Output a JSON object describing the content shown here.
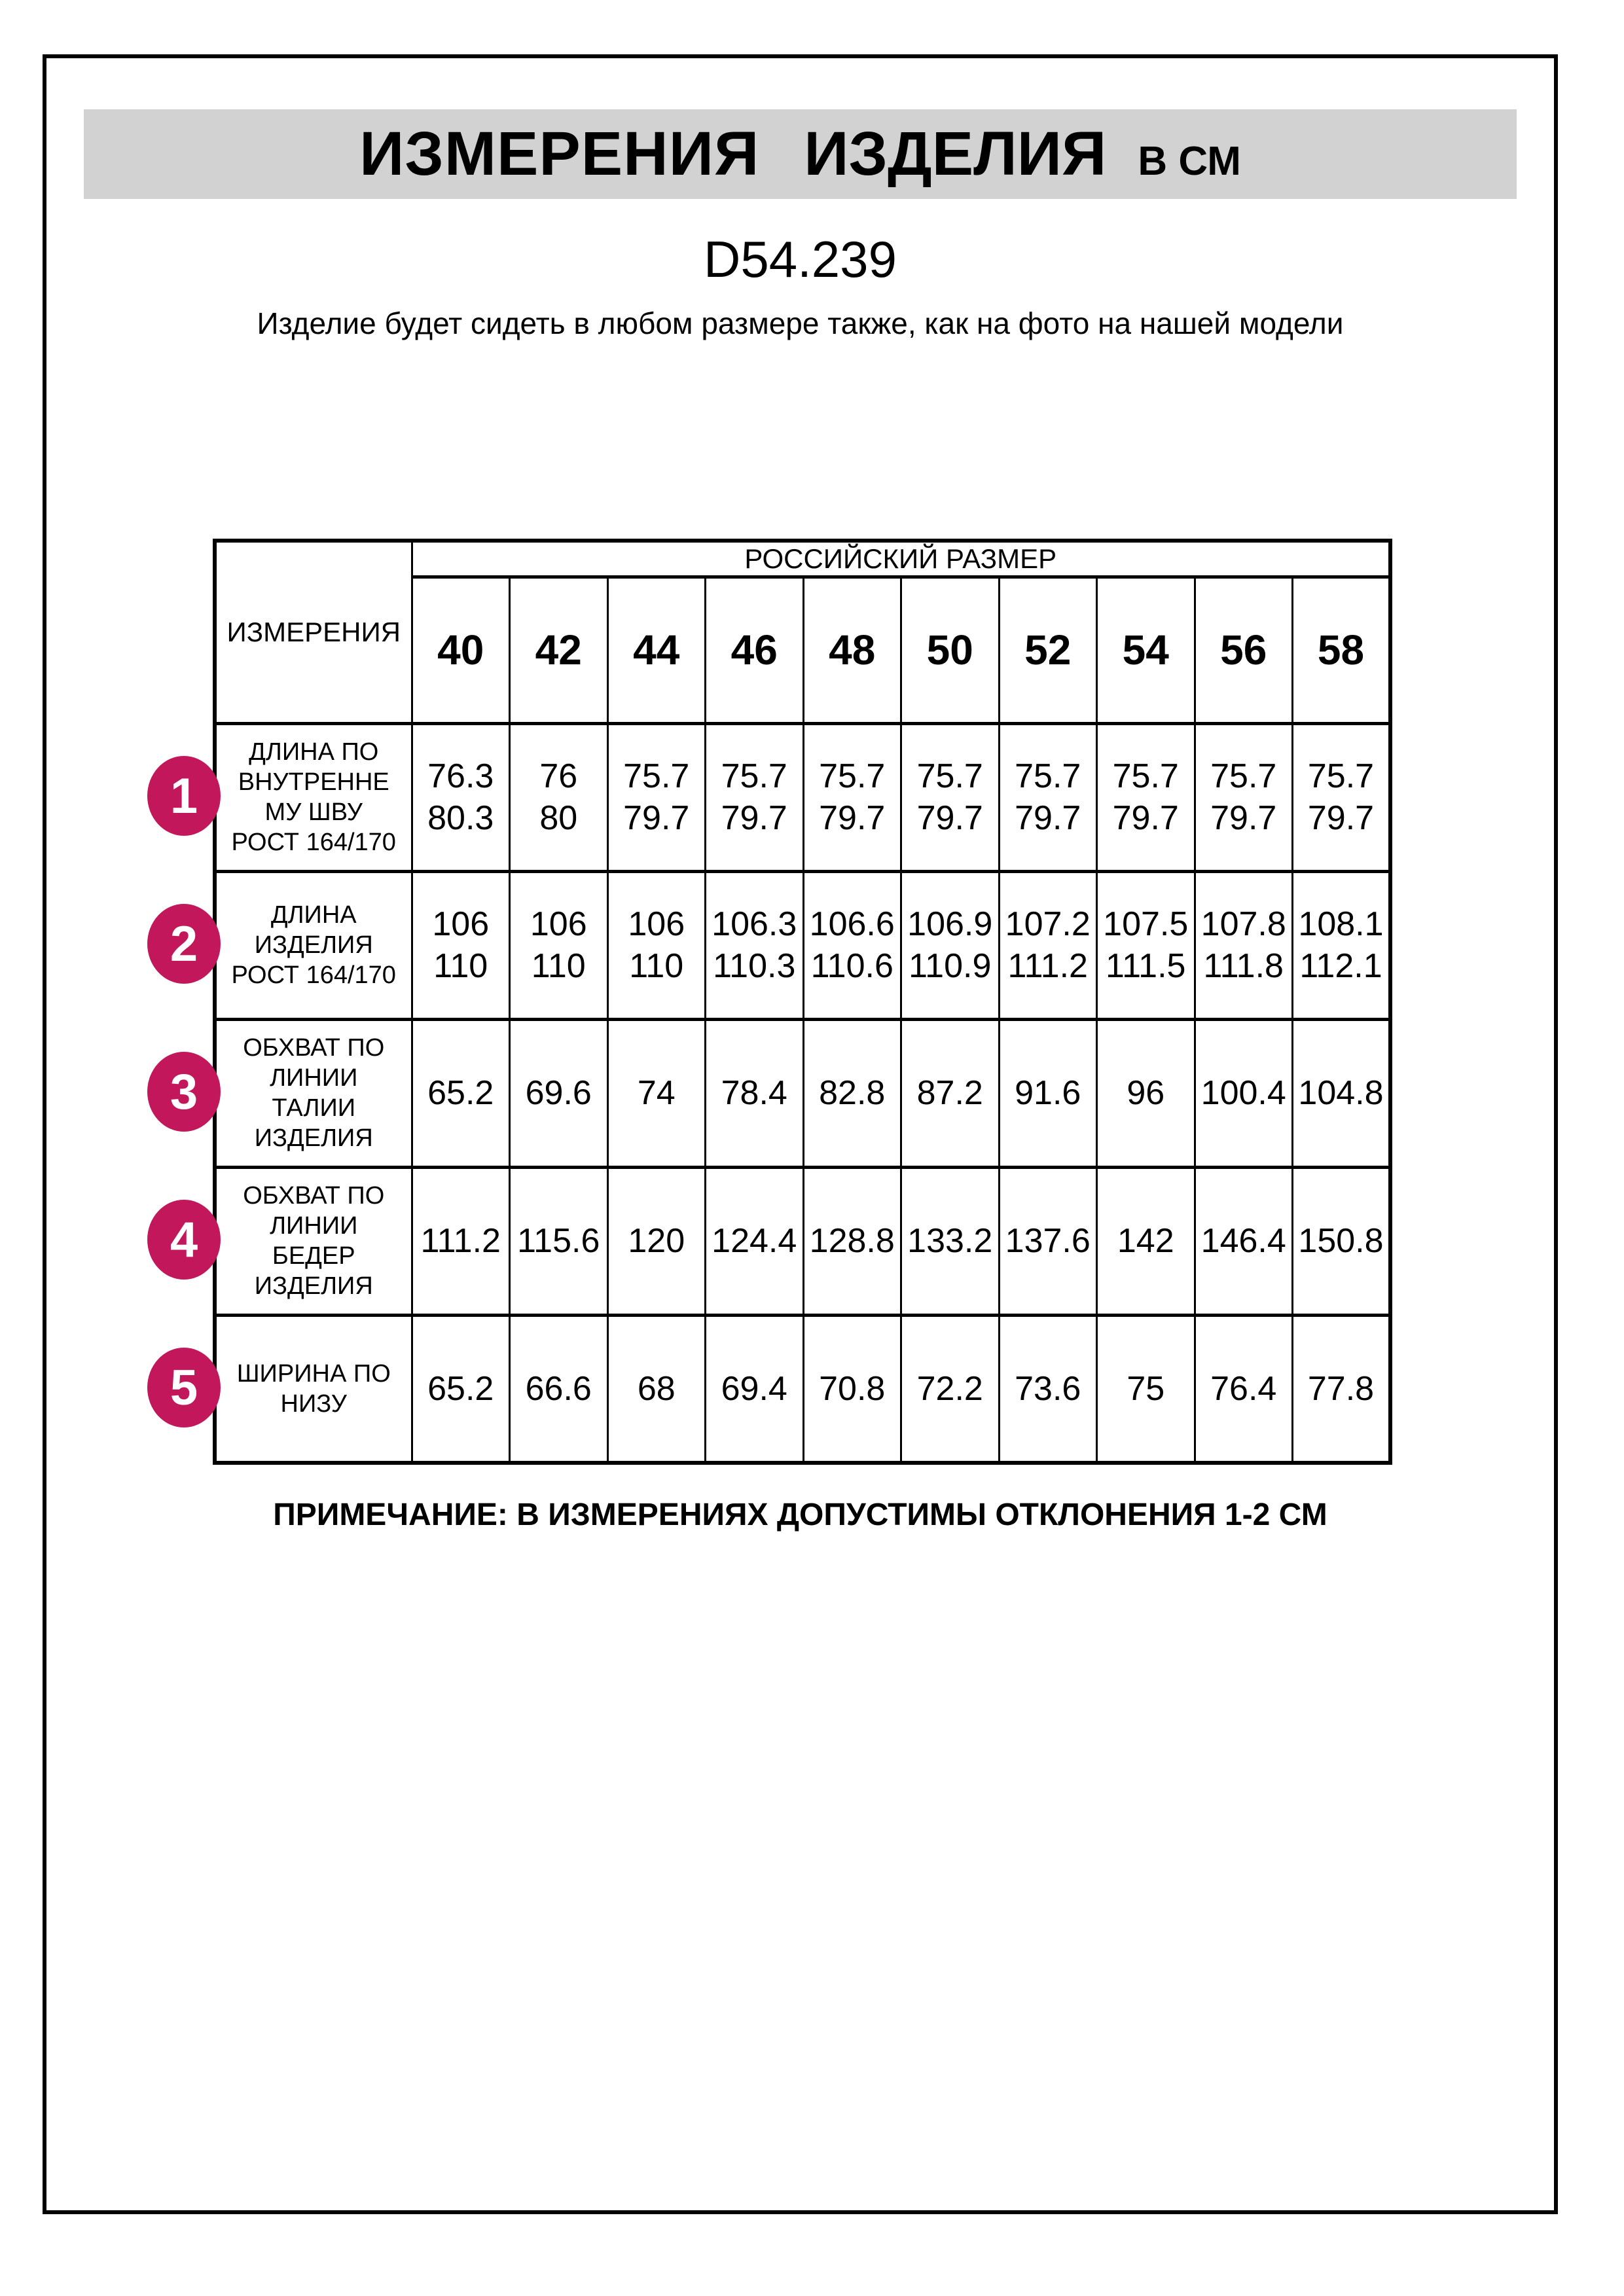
{
  "header": {
    "title_measurements": "ИЗМЕРЕНИЯ",
    "title_product": "ИЗДЕЛИЯ",
    "title_units": "В СМ",
    "product_code": "D54.239",
    "description": "Изделие будет сидеть в любом размере также, как на фото на нашей модели"
  },
  "table": {
    "measurements_col_header": "ИЗМЕРЕНИЯ",
    "size_group_header": "РОССИЙСКИЙ РАЗМЕР",
    "sizes": [
      "40",
      "42",
      "44",
      "46",
      "48",
      "50",
      "52",
      "54",
      "56",
      "58"
    ],
    "rows": [
      {
        "num": "1",
        "label": "ДЛИНА ПО\nВНУТРЕННЕ\nМУ ШВУ\nРОСТ 164/170",
        "values": [
          "76.3\n80.3",
          "76\n80",
          "75.7\n79.7",
          "75.7\n79.7",
          "75.7\n79.7",
          "75.7\n79.7",
          "75.7\n79.7",
          "75.7\n79.7",
          "75.7\n79.7",
          "75.7\n79.7"
        ]
      },
      {
        "num": "2",
        "label": "ДЛИНА\nИЗДЕЛИЯ\nРОСТ 164/170",
        "values": [
          "106\n110",
          "106\n110",
          "106\n110",
          "106.3\n110.3",
          "106.6\n110.6",
          "106.9\n110.9",
          "107.2\n111.2",
          "107.5\n111.5",
          "107.8\n111.8",
          "108.1\n112.1"
        ]
      },
      {
        "num": "3",
        "label": "ОБХВАТ ПО\nЛИНИИ\nТАЛИИ\nИЗДЕЛИЯ",
        "values": [
          "65.2",
          "69.6",
          "74",
          "78.4",
          "82.8",
          "87.2",
          "91.6",
          "96",
          "100.4",
          "104.8"
        ]
      },
      {
        "num": "4",
        "label": "ОБХВАТ ПО\nЛИНИИ\nБЕДЕР\nИЗДЕЛИЯ",
        "values": [
          "111.2",
          "115.6",
          "120",
          "124.4",
          "128.8",
          "133.2",
          "137.6",
          "142",
          "146.4",
          "150.8"
        ]
      },
      {
        "num": "5",
        "label": "ШИРИНА ПО\nНИЗУ",
        "values": [
          "65.2",
          "66.6",
          "68",
          "69.4",
          "70.8",
          "72.2",
          "73.6",
          "75",
          "76.4",
          "77.8"
        ]
      }
    ]
  },
  "note": "ПРИМЕЧАНИЕ: В ИЗМЕРЕНИЯХ ДОПУСТИМЫ ОТКЛОНЕНИЯ 1-2 СМ",
  "colors": {
    "badge": "#c2185b",
    "title_band": "#d2d2d2"
  }
}
